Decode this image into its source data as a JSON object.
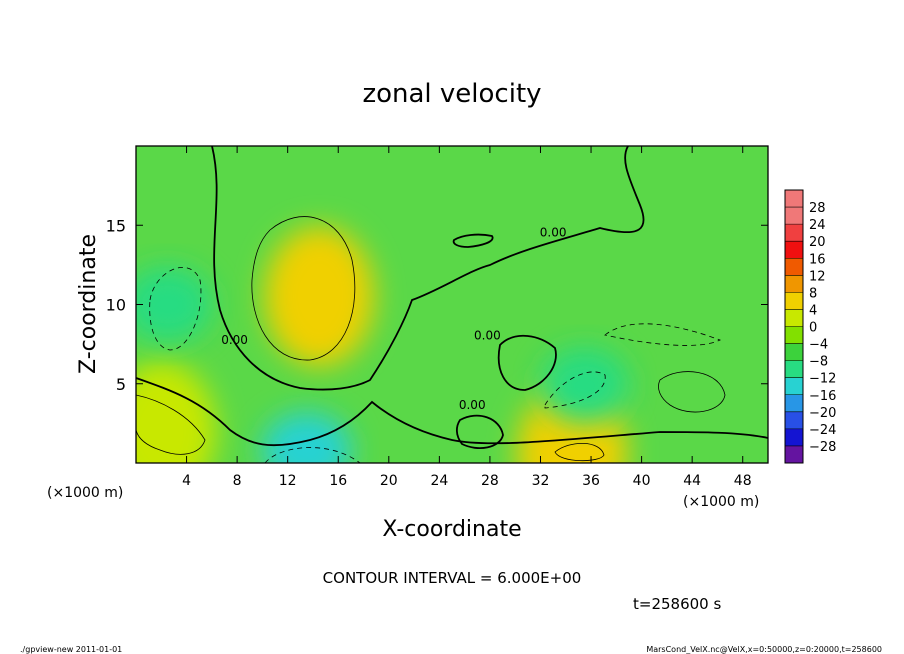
{
  "chart_data": {
    "type": "heatmap",
    "title": "zonal velocity",
    "xlabel": "X-coordinate",
    "ylabel": "Z-coordinate",
    "x_unit_label": "(×1000 m)",
    "y_unit_label": "(×1000 m)",
    "xlim": [
      0,
      50
    ],
    "ylim": [
      0,
      20
    ],
    "x_ticks": [
      "4",
      "8",
      "12",
      "16",
      "20",
      "24",
      "28",
      "32",
      "36",
      "40",
      "44",
      "48"
    ],
    "x_tick_values": [
      4,
      8,
      12,
      16,
      20,
      24,
      28,
      32,
      36,
      40,
      44,
      48
    ],
    "y_ticks": [
      "5",
      "10",
      "15"
    ],
    "y_tick_values": [
      5,
      10,
      15
    ],
    "contour_labels": [
      {
        "text": "0.00",
        "x": 33,
        "y": 14.3
      },
      {
        "text": "0.00",
        "x": 7.8,
        "y": 7.5
      },
      {
        "text": "0.00",
        "x": 27.8,
        "y": 7.8
      },
      {
        "text": "0.00",
        "x": 26.6,
        "y": 3.4
      }
    ],
    "colorbar": {
      "levels": [
        "28",
        "24",
        "20",
        "16",
        "12",
        "8",
        "4",
        "0",
        "−4",
        "−8",
        "−12",
        "−16",
        "−20",
        "−24",
        "−28"
      ],
      "colors": [
        "#f07878",
        "#f04040",
        "#f01010",
        "#f05a00",
        "#f09600",
        "#f0d000",
        "#c8e800",
        "#82e000",
        "#3cd23c",
        "#28dc82",
        "#28d2d2",
        "#2896e6",
        "#2850e6",
        "#1414d2",
        "#6414a0"
      ]
    },
    "regions": [
      {
        "sign": "positive",
        "value": 9,
        "x": 14.5,
        "y": 10.5
      },
      {
        "sign": "positive",
        "value": 10,
        "x": 34.5,
        "y": 0.6
      },
      {
        "sign": "positive",
        "value": 6,
        "x": 2,
        "y": 2
      },
      {
        "sign": "negative",
        "value": -9,
        "x": 13.5,
        "y": 0.8
      },
      {
        "sign": "negative",
        "value": -8,
        "x": 2.5,
        "y": 10
      },
      {
        "sign": "negative",
        "value": -7,
        "x": 35.5,
        "y": 4.9
      }
    ],
    "contour_interval": "CONTOUR INTERVAL = 6.000E+00",
    "time_label": "t=258600 s",
    "grid": false
  },
  "footer": {
    "left": "./gpview-new   2011-01-01",
    "right": "MarsCond_VelX.nc@VelX,x=0:50000,z=0:20000,t=258600"
  }
}
